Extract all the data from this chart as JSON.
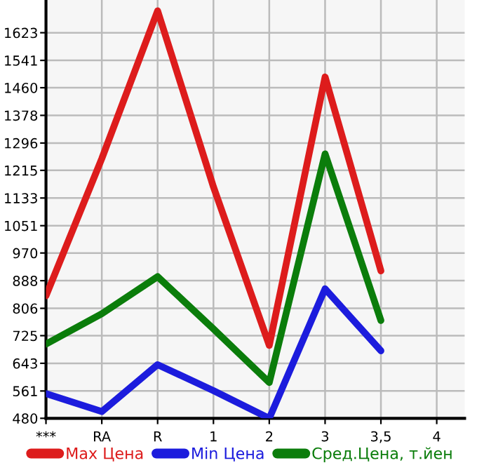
{
  "chart_data": {
    "type": "line",
    "categories": [
      "***",
      "RA",
      "R",
      "1",
      "2",
      "3",
      "3,5",
      "4"
    ],
    "series": [
      {
        "name": "Max Цена",
        "color": "#dd1c1c",
        "values": [
          843,
          1250,
          1688,
          1166,
          696,
          1492,
          917,
          null
        ]
      },
      {
        "name": "Min Цена",
        "color": "#1c1cdd",
        "values": [
          553,
          500,
          639,
          562,
          480,
          864,
          680,
          null
        ]
      },
      {
        "name": "Сред.Цена, т.йен",
        "color": "#0b7d0b",
        "values": [
          700,
          790,
          900,
          745,
          586,
          1264,
          770,
          null
        ]
      }
    ],
    "ylim": [
      480,
      1720
    ],
    "yticks": [
      480,
      561,
      643,
      725,
      806,
      888,
      970,
      1051,
      1133,
      1215,
      1296,
      1378,
      1460,
      1541,
      1623
    ],
    "grid": true,
    "legend": "bottom",
    "marker": "none",
    "line_style": "solid"
  }
}
